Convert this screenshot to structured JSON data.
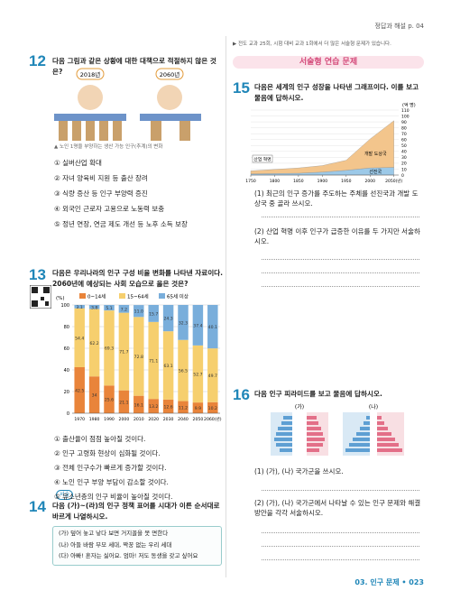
{
  "header": {
    "answer_ref": "정답과 해설 p. 04"
  },
  "q12": {
    "number": "12",
    "text": "다음 그림과 같은 상황에 대한 대책으로 적절하지 않은 것은?",
    "year_left": "2018년",
    "year_right": "2060년",
    "caption": "▲ 노인 1명을 부양하는 생산 가능 인구(추계)의 변화",
    "options": [
      "① 실버산업 확대",
      "② 자녀 양육비 지원 등 출산 장려",
      "③ 식량 증산 등 인구 부양력 증진",
      "④ 외국인 근로자 고용으로 노동력 보충",
      "⑤ 정년 연장, 연금 제도 개선 등 노후 소득 보장"
    ]
  },
  "q13": {
    "number": "13",
    "text": "다음은 우리나라의 인구 구성 비율 변화를 나타낸 자료이다. 2060년에 예상되는 사회 모습으로 옳은 것은?",
    "options": [
      "① 출산율이 점점 높아질 것이다.",
      "② 인구 고령화 현상이 심화될 것이다.",
      "③ 전체 인구수가 빠르게 증가할 것이다.",
      "④ 노인 인구 부양 부담이 감소할 것이다.",
      "⑤ 유소년층의 인구 비율이 높아질 것이다."
    ]
  },
  "chart_data": {
    "type": "stacked-bar",
    "y_label": "(%)",
    "categories": [
      "1970",
      "1980",
      "1990",
      "2000",
      "2010",
      "2020",
      "2030",
      "2040",
      "2050",
      "2060(년)"
    ],
    "series": [
      {
        "name": "0~14세",
        "color": "#e9843a",
        "values": [
          42.5,
          34.0,
          25.6,
          21.1,
          16.1,
          13.2,
          12.6,
          11.2,
          9.9,
          10.2
        ]
      },
      {
        "name": "15~64세",
        "color": "#f6cf6e",
        "values": [
          54.4,
          62.2,
          69.3,
          71.7,
          72.8,
          71.1,
          63.1,
          56.5,
          52.7,
          49.7
        ]
      },
      {
        "name": "65세 이상",
        "color": "#79aedb",
        "values": [
          3.1,
          3.8,
          5.1,
          7.2,
          11.0,
          15.7,
          24.3,
          32.3,
          37.4,
          40.1
        ],
        "value_labels": [
          "3.1",
          "3.8",
          "5.1",
          "7.2",
          "11.0",
          "15.7",
          "24.3",
          "32.3",
          "37.4",
          "40.1"
        ]
      }
    ],
    "ylim": [
      0,
      100
    ],
    "yticks": [
      0,
      20,
      40,
      60,
      80,
      100
    ]
  },
  "q14": {
    "badge": "서술",
    "number": "14",
    "text": "다음 (가)~(라)의 인구 정책 표어를 시대가 이른 순서대로 바르게 나열하시오.",
    "box": [
      "(가) 덮어 놓고 낳다 보면 거지꼴을 못 면한다",
      "(나) 아들 바람 부모 세대, 짝꿍 없는 우리 세대",
      "(다) 아빠! 혼자는 싫어요. 엄마! 저도 동생을 갖고 싶어요"
    ]
  },
  "right_note": "▶ 전도 교과 25회, 시험 대비 교과 1회에서 더 많은 서술형 문제가 있습니다.",
  "banner": "서술형 연습 문제",
  "q15": {
    "number": "15",
    "text": "다음은 세계의 인구 성장을 나타낸 그래프이다. 이를 보고 물음에 답하시오.",
    "chart": {
      "type": "area",
      "y_label": "(억 명)",
      "annotation": "산업 혁명",
      "x": [
        1750,
        1800,
        1850,
        1900,
        1950,
        2000,
        2050
      ],
      "series": [
        {
          "name": "선진국",
          "color": "#9cc9e8",
          "values": [
            2,
            2.5,
            3,
            5,
            8,
            12,
            13
          ]
        },
        {
          "name": "개발 도상국",
          "color": "#f3c58c",
          "values": [
            5,
            7,
            9,
            11,
            17,
            49,
            79
          ]
        }
      ],
      "xlim": [
        1750,
        2060
      ],
      "xticks": [
        1750,
        1800,
        1850,
        1900,
        1950,
        2000,
        {
          "value": 2050,
          "label": "2050(년)"
        }
      ],
      "ylim": [
        0,
        110
      ],
      "yticks": [
        0,
        10,
        20,
        30,
        40,
        50,
        60,
        70,
        80,
        90,
        100,
        110
      ]
    },
    "sub1": "(1) 최근의 인구 증가를 주도하는 주체를 선진국과 개발 도상국 중 골라 쓰시오.",
    "sub2": "(2) 산업 혁명 이후 인구가 급증한 이유를 두 가지만 서술하시오."
  },
  "q16": {
    "number": "16",
    "text": "다음 인구 피라미드를 보고 물음에 답하시오.",
    "label_a": "(가)",
    "label_b": "(나)",
    "sub1": "(1) (가), (나) 국가군을 쓰시오.",
    "sub2": "(2) (가), (나) 국가군에서 나타날 수 있는 인구 문제와 해결 방안을 각각 서술하시오."
  },
  "footer": "03. 인구 문제 • 023"
}
